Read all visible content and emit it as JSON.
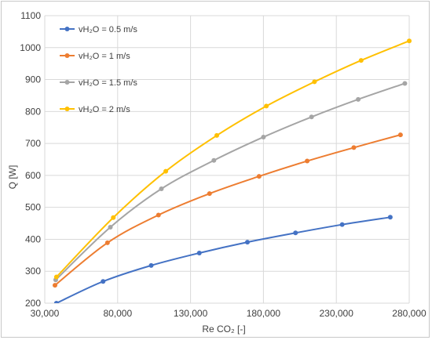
{
  "chart_data": {
    "type": "line",
    "title": "",
    "xlabel": "Re CO₂ [-]",
    "ylabel": "Q [W]",
    "xlim": [
      30000,
      280000
    ],
    "ylim": [
      200,
      1100
    ],
    "xticks": [
      30000,
      80000,
      130000,
      180000,
      230000,
      280000
    ],
    "xtick_labels": [
      "30,000",
      "80,000",
      "130,000",
      "180,000",
      "230,000",
      "280,000"
    ],
    "yticks": [
      200,
      300,
      400,
      500,
      600,
      700,
      800,
      900,
      1000,
      1100
    ],
    "ytick_labels": [
      "200",
      "300",
      "400",
      "500",
      "600",
      "700",
      "800",
      "900",
      "1000",
      "1100"
    ],
    "grid": "vertical and horizontal major gridlines",
    "legend_position": "top-left",
    "series": [
      {
        "name": "vH₂O = 0.5 m/s",
        "color": "#4472C4",
        "x": [
          38000,
          70000,
          103000,
          136000,
          169000,
          202000,
          234000,
          267000
        ],
        "y": [
          200,
          268,
          318,
          357,
          391,
          420,
          446,
          469
        ]
      },
      {
        "name": "vH₂O = 1 m/s",
        "color": "#ED7D31",
        "x": [
          37000,
          73000,
          108000,
          143000,
          177000,
          210000,
          242000,
          274000
        ],
        "y": [
          256,
          389,
          476,
          543,
          597,
          645,
          687,
          727
        ]
      },
      {
        "name": "vH₂O = 1.5 m/s",
        "color": "#A5A5A5",
        "x": [
          37500,
          75000,
          110000,
          146000,
          180000,
          213000,
          245000,
          277000
        ],
        "y": [
          273,
          438,
          558,
          647,
          720,
          783,
          838,
          888
        ]
      },
      {
        "name": "vH₂O = 2 m/s",
        "color": "#FFC000",
        "x": [
          38000,
          77000,
          113000,
          148000,
          182000,
          215000,
          247000,
          280000
        ],
        "y": [
          282,
          468,
          613,
          725,
          817,
          893,
          960,
          1021
        ]
      }
    ]
  }
}
